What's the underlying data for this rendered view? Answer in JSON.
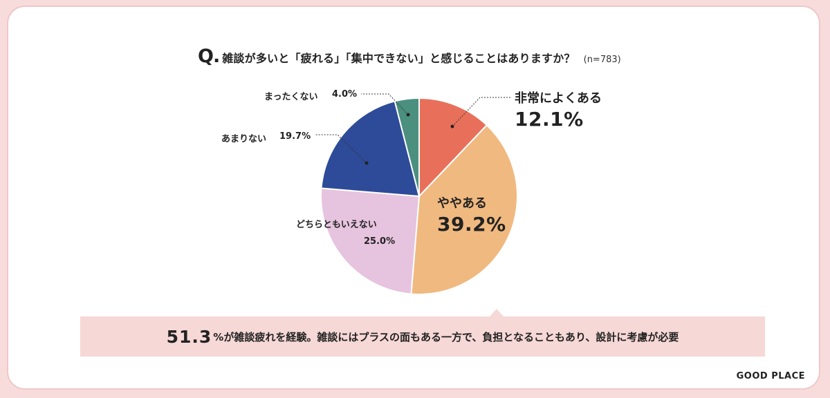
{
  "question": {
    "prefix": "Q.",
    "text": "雑談が多いと「疲れる」「集中できない」と感じることはありますか？",
    "sample": "(n=783)"
  },
  "chart_data": {
    "type": "pie",
    "slices": [
      {
        "label": "非常によくある",
        "value": 12.1,
        "display": "12.1%",
        "color": "#e8705b"
      },
      {
        "label": "ややある",
        "value": 39.2,
        "display": "39.2%",
        "color": "#f0b97f"
      },
      {
        "label": "どちらともいえない",
        "value": 25.0,
        "display": "25.0%",
        "color": "#e6c3de"
      },
      {
        "label": "あまりない",
        "value": 19.7,
        "display": "19.7%",
        "color": "#2d4b98"
      },
      {
        "label": "まったくない",
        "value": 4.0,
        "display": "4.0%",
        "color": "#4b8f7f"
      }
    ]
  },
  "summary": {
    "number": "51.3",
    "text": "%が雑談疲れを経験。雑談にはプラスの面もある一方で、負担となることもあり、設計に考慮が必要"
  },
  "brand": "GOOD PLACE"
}
